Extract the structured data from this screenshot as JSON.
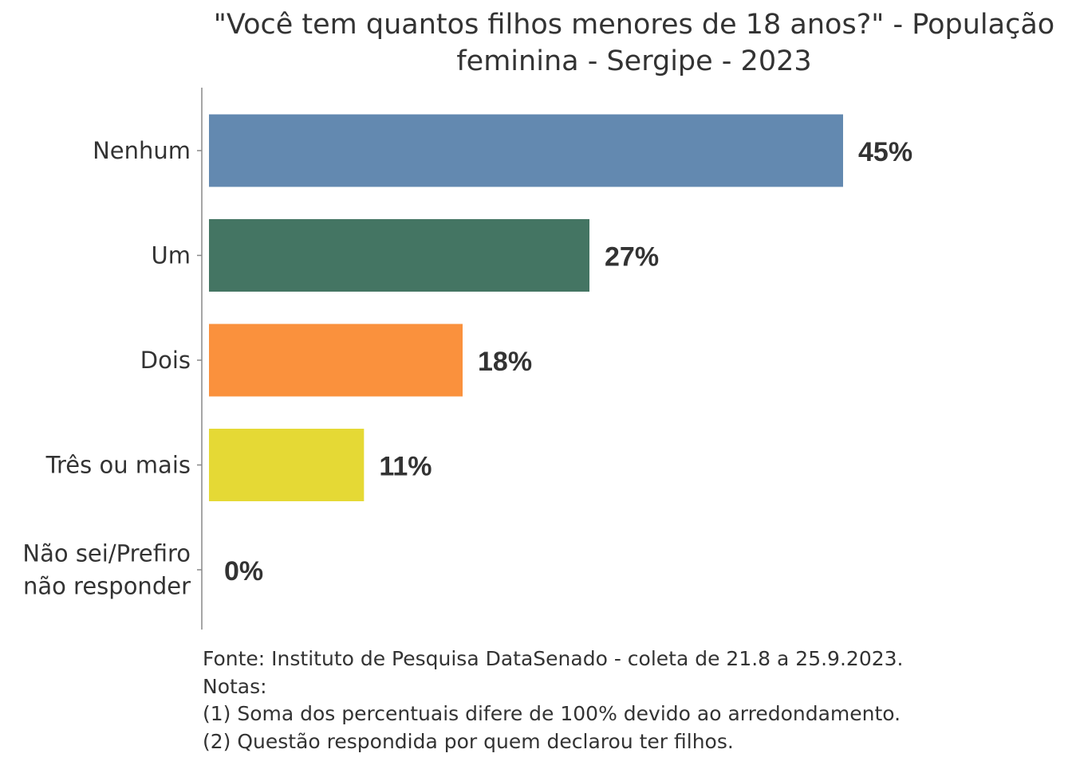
{
  "chart_data": {
    "type": "bar",
    "orientation": "horizontal",
    "title": "\"Você tem quantos filhos menores de 18 anos?\" - População feminina - Sergipe - 2023",
    "title_lines": [
      "\"Você tem quantos filhos menores de 18 anos?\" - População",
      "feminina - Sergipe - 2023"
    ],
    "categories": [
      "Nenhum",
      "Um",
      "Dois",
      "Três ou mais",
      "Não sei/Prefiro não responder"
    ],
    "category_lines": [
      [
        "Nenhum"
      ],
      [
        "Um"
      ],
      [
        "Dois"
      ],
      [
        "Três ou mais"
      ],
      [
        "Não sei/Prefiro",
        "não responder"
      ]
    ],
    "values": [
      45,
      27,
      18,
      11,
      0
    ],
    "labels": [
      "45%",
      "27%",
      "18%",
      "11%",
      "0%"
    ],
    "colors": [
      "#6389b0",
      "#447563",
      "#fa913d",
      "#e5d935",
      "#999999"
    ],
    "xlabel": "",
    "ylabel": "",
    "xlim": [
      0,
      45
    ],
    "grid": false
  },
  "notes": [
    "Fonte: Instituto de Pesquisa DataSenado - coleta de 21.8 a 25.9.2023.",
    "Notas:",
    "(1) Soma dos percentuais difere de 100% devido ao arredondamento.",
    "(2) Questão respondida por quem declarou ter filhos."
  ]
}
